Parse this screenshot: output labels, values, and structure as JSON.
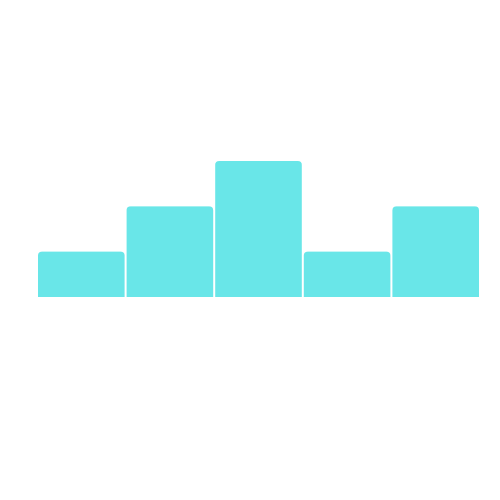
{
  "chart_data": {
    "type": "bar",
    "values": [
      1,
      2,
      3,
      1,
      2
    ],
    "ylim": [
      0,
      3
    ],
    "grid": false,
    "bar_color": "#69e6e8"
  }
}
